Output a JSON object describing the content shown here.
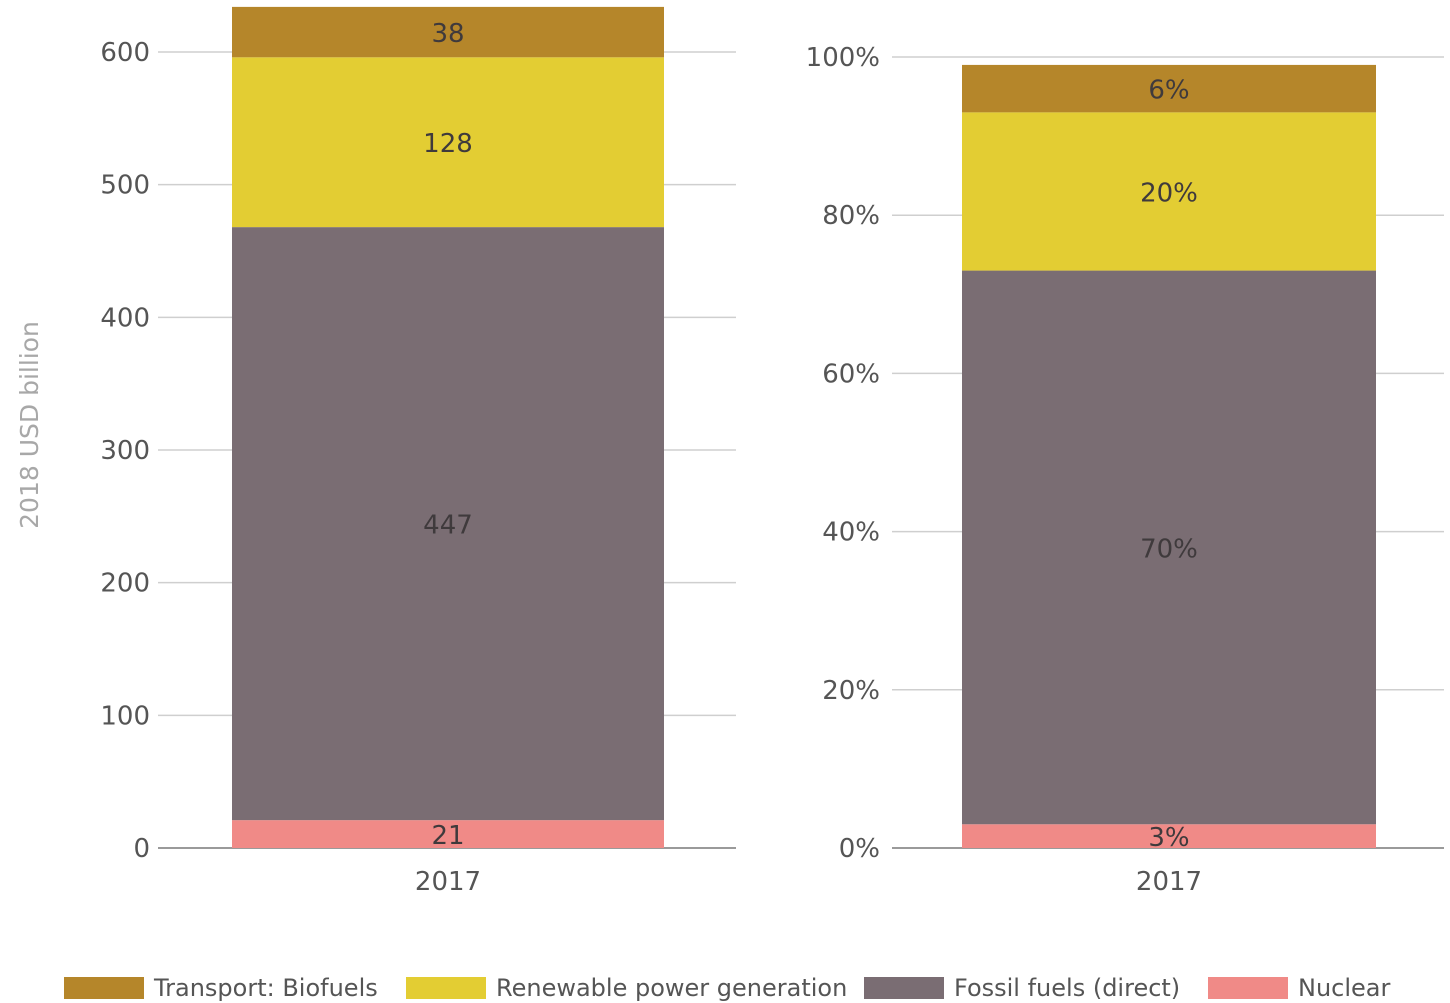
{
  "chart_data": [
    {
      "type": "bar",
      "stacked": true,
      "categories": [
        "2017"
      ],
      "ylabel": "2018 USD billion",
      "ylim": [
        0,
        600
      ],
      "yticks": [
        "0",
        "100",
        "200",
        "300",
        "400",
        "500",
        "600"
      ],
      "grid": true,
      "series": [
        {
          "name": "Nuclear",
          "values": [
            21
          ],
          "labels": [
            "21"
          ],
          "color": "#f08a87"
        },
        {
          "name": "Fossil fuels (direct)",
          "values": [
            447
          ],
          "labels": [
            "447"
          ],
          "color": "#7a6d73"
        },
        {
          "name": "Renewable power generation",
          "values": [
            128
          ],
          "labels": [
            "128"
          ],
          "color": "#e3cd33"
        },
        {
          "name": "Transport: Biofuels",
          "values": [
            38
          ],
          "labels": [
            "38"
          ],
          "color": "#b5862a"
        }
      ]
    },
    {
      "type": "bar",
      "stacked": true,
      "categories": [
        "2017"
      ],
      "ylim": [
        0,
        100
      ],
      "yticks": [
        "0%",
        "20%",
        "40%",
        "60%",
        "80%",
        "100%"
      ],
      "grid": true,
      "series": [
        {
          "name": "Nuclear",
          "values": [
            3
          ],
          "labels": [
            "3%"
          ],
          "color": "#f08a87"
        },
        {
          "name": "Fossil fuels (direct)",
          "values": [
            70
          ],
          "labels": [
            "70%"
          ],
          "color": "#7a6d73"
        },
        {
          "name": "Renewable power generation",
          "values": [
            20
          ],
          "labels": [
            "20%"
          ],
          "color": "#e3cd33"
        },
        {
          "name": "Transport: Biofuels",
          "values": [
            6
          ],
          "labels": [
            "6%"
          ],
          "color": "#b5862a"
        }
      ]
    }
  ],
  "legend": {
    "items": [
      {
        "label": "Transport: Biofuels",
        "color": "#b5862a"
      },
      {
        "label": "Renewable power generation",
        "color": "#e3cd33"
      },
      {
        "label": "Fossil fuels (direct)",
        "color": "#7a6d73"
      },
      {
        "label": "Nuclear",
        "color": "#f08a87"
      }
    ]
  }
}
